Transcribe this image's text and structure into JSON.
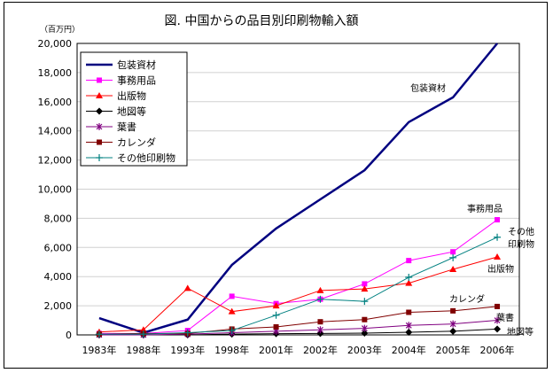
{
  "chart_data": {
    "type": "line",
    "title": "図. 中国からの品目別印刷物輸入額",
    "ylabel": "（百万円）",
    "xlabel": "",
    "ylim": [
      0,
      20000
    ],
    "yticks": [
      0,
      2000,
      4000,
      6000,
      8000,
      10000,
      12000,
      14000,
      16000,
      18000,
      20000
    ],
    "ytick_labels": [
      "0",
      "2,000",
      "4,000",
      "6,000",
      "8,000",
      "10,000",
      "12,000",
      "14,000",
      "16,000",
      "18,000",
      "20,000"
    ],
    "categories": [
      "1983年",
      "1988年",
      "1993年",
      "1998年",
      "2001年",
      "2002年",
      "2003年",
      "2004年",
      "2005年",
      "2006年"
    ],
    "grid": true,
    "legend_position": "top-left",
    "series": [
      {
        "name": "包装資材",
        "color": "#000080",
        "marker": "none",
        "end_label": "包装資材",
        "values": [
          1150,
          150,
          1050,
          4800,
          7300,
          9300,
          11300,
          14600,
          16300,
          20000
        ]
      },
      {
        "name": "事務用品",
        "color": "#ff00ff",
        "marker": "square",
        "end_label": "事務用品",
        "values": [
          100,
          100,
          300,
          2650,
          2150,
          2450,
          3500,
          5100,
          5700,
          7900
        ]
      },
      {
        "name": "出版物",
        "color": "#ff0000",
        "marker": "triangle",
        "end_label": "出版物",
        "values": [
          200,
          350,
          3200,
          1600,
          2000,
          3050,
          3150,
          3550,
          4500,
          5350
        ]
      },
      {
        "name": "地図等",
        "color": "#000000",
        "marker": "diamond",
        "end_label": "地図等",
        "values": [
          0,
          0,
          0,
          50,
          80,
          100,
          120,
          180,
          250,
          400
        ]
      },
      {
        "name": "葉書",
        "color": "#800080",
        "marker": "star",
        "end_label": "葉書",
        "values": [
          0,
          0,
          50,
          150,
          250,
          350,
          450,
          650,
          750,
          1000
        ]
      },
      {
        "name": "カレンダ",
        "color": "#800000",
        "marker": "square",
        "end_label": "カレンダ",
        "values": [
          50,
          100,
          100,
          400,
          550,
          900,
          1050,
          1550,
          1650,
          1950
        ]
      },
      {
        "name": "その他印刷物",
        "color": "#008080",
        "marker": "plus",
        "end_label": "その他\n印刷物",
        "values": [
          50,
          50,
          150,
          300,
          1350,
          2450,
          2300,
          3950,
          5300,
          6700
        ]
      }
    ]
  }
}
